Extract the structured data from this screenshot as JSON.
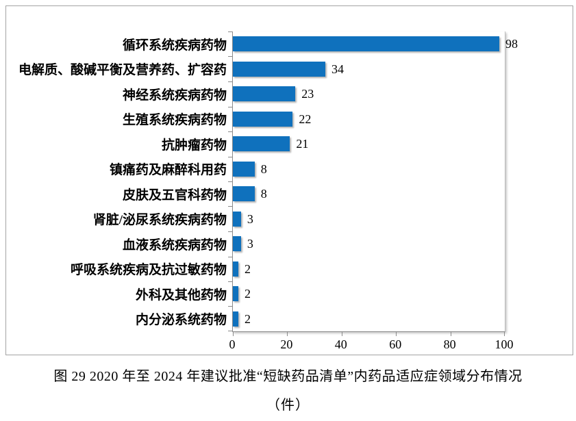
{
  "figure": {
    "caption_line1": "图 29  2020 年至 2024 年建议批准“短缺药品清单”内药品适应症领域分布情况",
    "caption_line2": "（件）"
  },
  "colors": {
    "bar": "#0f71bd",
    "axis": "#8a8a8a",
    "frame_border": "#a3a3a3",
    "plot_right_border": "#bdbdbd",
    "text": "#000000"
  },
  "chart_data": {
    "type": "bar",
    "orientation": "horizontal",
    "title": "",
    "xlabel": "",
    "ylabel": "",
    "categories": [
      "循环系统疾病药物",
      "电解质、酸碱平衡及营养药、扩容药",
      "神经系统疾病药物",
      "生殖系统疾病药物",
      "抗肿瘤药物",
      "镇痛药及麻醉科用药",
      "皮肤及五官科药物",
      "肾脏/泌尿系统疾病药物",
      "血液系统疾病药物",
      "呼吸系统疾病及抗过敏药物",
      "外科及其他药物",
      "内分泌系统药物"
    ],
    "values": [
      98,
      34,
      23,
      22,
      21,
      8,
      8,
      3,
      3,
      2,
      2,
      2
    ],
    "xlim": [
      0,
      100
    ],
    "xticks": [
      0,
      20,
      40,
      60,
      80,
      100
    ],
    "grid": false,
    "legend": false,
    "data_labels": true
  }
}
